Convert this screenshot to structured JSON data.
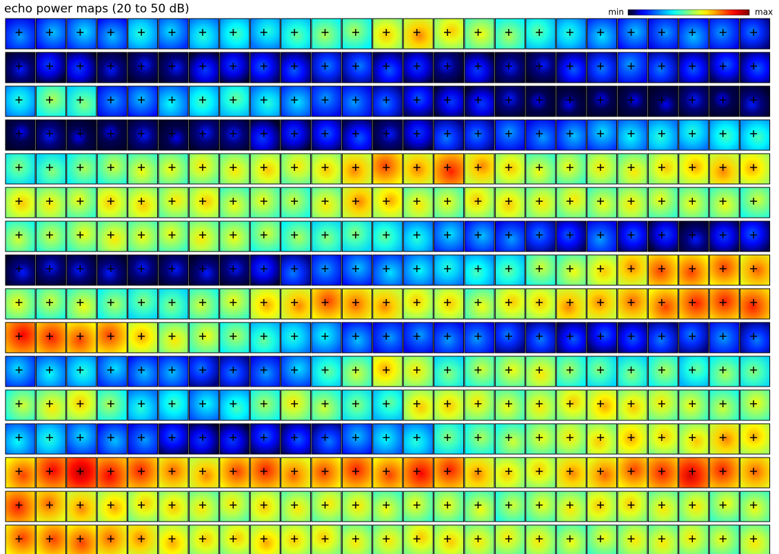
{
  "chart_data": {
    "type": "heatmap-grid",
    "title": "echo power maps (20 to 50 dB)",
    "colorbar": {
      "min_label": "min",
      "max_label": "max"
    },
    "vlim": [
      20,
      50
    ],
    "maps": [
      [
        26,
        27,
        28,
        27,
        30,
        28,
        30,
        31,
        30,
        32,
        34,
        34,
        38,
        40,
        38,
        36,
        34,
        32,
        30,
        28,
        27,
        26,
        27,
        26,
        25
      ],
      [
        22,
        23,
        23,
        22,
        22,
        22,
        23,
        23,
        24,
        24,
        25,
        25,
        24,
        23,
        22,
        23,
        22,
        22,
        24,
        25,
        26,
        25,
        24,
        24,
        24
      ],
      [
        30,
        34,
        33,
        26,
        27,
        29,
        31,
        32,
        30,
        28,
        26,
        26,
        25,
        24,
        23,
        23,
        22,
        21,
        21,
        21,
        21,
        21,
        22,
        21,
        22
      ],
      [
        21,
        22,
        21,
        21,
        22,
        21,
        22,
        22,
        23,
        23,
        24,
        24,
        22,
        23,
        25,
        25,
        26,
        26,
        27,
        28,
        29,
        30,
        30,
        31,
        31
      ],
      [
        33,
        33,
        34,
        35,
        36,
        36,
        37,
        37,
        38,
        37,
        38,
        40,
        42,
        40,
        43,
        40,
        38,
        36,
        36,
        37,
        37,
        38,
        39,
        40,
        39
      ],
      [
        38,
        37,
        36,
        38,
        38,
        37,
        38,
        36,
        36,
        35,
        37,
        40,
        39,
        37,
        36,
        38,
        38,
        37,
        37,
        36,
        37,
        36,
        36,
        36,
        35
      ],
      [
        35,
        35,
        36,
        37,
        36,
        36,
        37,
        36,
        35,
        34,
        33,
        33,
        32,
        30,
        28,
        27,
        26,
        25,
        24,
        26,
        24,
        23,
        22,
        23,
        24
      ],
      [
        22,
        22,
        22,
        22,
        22,
        22,
        22,
        22,
        23,
        25,
        26,
        27,
        28,
        29,
        30,
        31,
        32,
        35,
        36,
        38,
        40,
        42,
        42,
        42,
        41
      ],
      [
        36,
        35,
        36,
        34,
        33,
        33,
        35,
        36,
        39,
        40,
        42,
        41,
        40,
        38,
        38,
        36,
        38,
        38,
        40,
        40,
        41,
        42,
        43,
        43,
        43
      ],
      [
        44,
        43,
        42,
        42,
        39,
        37,
        36,
        34,
        32,
        30,
        29,
        27,
        26,
        26,
        26,
        26,
        25,
        25,
        24,
        24,
        24,
        25,
        25,
        26,
        25
      ],
      [
        28,
        29,
        30,
        28,
        27,
        27,
        25,
        25,
        26,
        28,
        32,
        35,
        39,
        37,
        33,
        35,
        36,
        37,
        34,
        33,
        33,
        34,
        32,
        34,
        33
      ],
      [
        35,
        37,
        38,
        34,
        30,
        31,
        29,
        31,
        34,
        37,
        35,
        33,
        32,
        38,
        38,
        37,
        36,
        37,
        38,
        39,
        38,
        37,
        36,
        35,
        36
      ],
      [
        29,
        30,
        28,
        27,
        26,
        24,
        23,
        23,
        24,
        24,
        25,
        27,
        29,
        30,
        33,
        34,
        35,
        36,
        37,
        38,
        39,
        38,
        38,
        40,
        39
      ],
      [
        42,
        44,
        46,
        44,
        43,
        41,
        40,
        42,
        43,
        41,
        42,
        43,
        42,
        44,
        43,
        40,
        38,
        38,
        40,
        41,
        42,
        43,
        45,
        43,
        41
      ],
      [
        43,
        41,
        40,
        39,
        38,
        38,
        37,
        37,
        38,
        37,
        37,
        37,
        36,
        36,
        36,
        36,
        35,
        36,
        37,
        38,
        38,
        37,
        37,
        36,
        36
      ],
      [
        42,
        42,
        42,
        41,
        40,
        39,
        38,
        38,
        39,
        38,
        38,
        37,
        37,
        38,
        38,
        37,
        37,
        37,
        36,
        36,
        37,
        37,
        37,
        36,
        37
      ]
    ]
  }
}
